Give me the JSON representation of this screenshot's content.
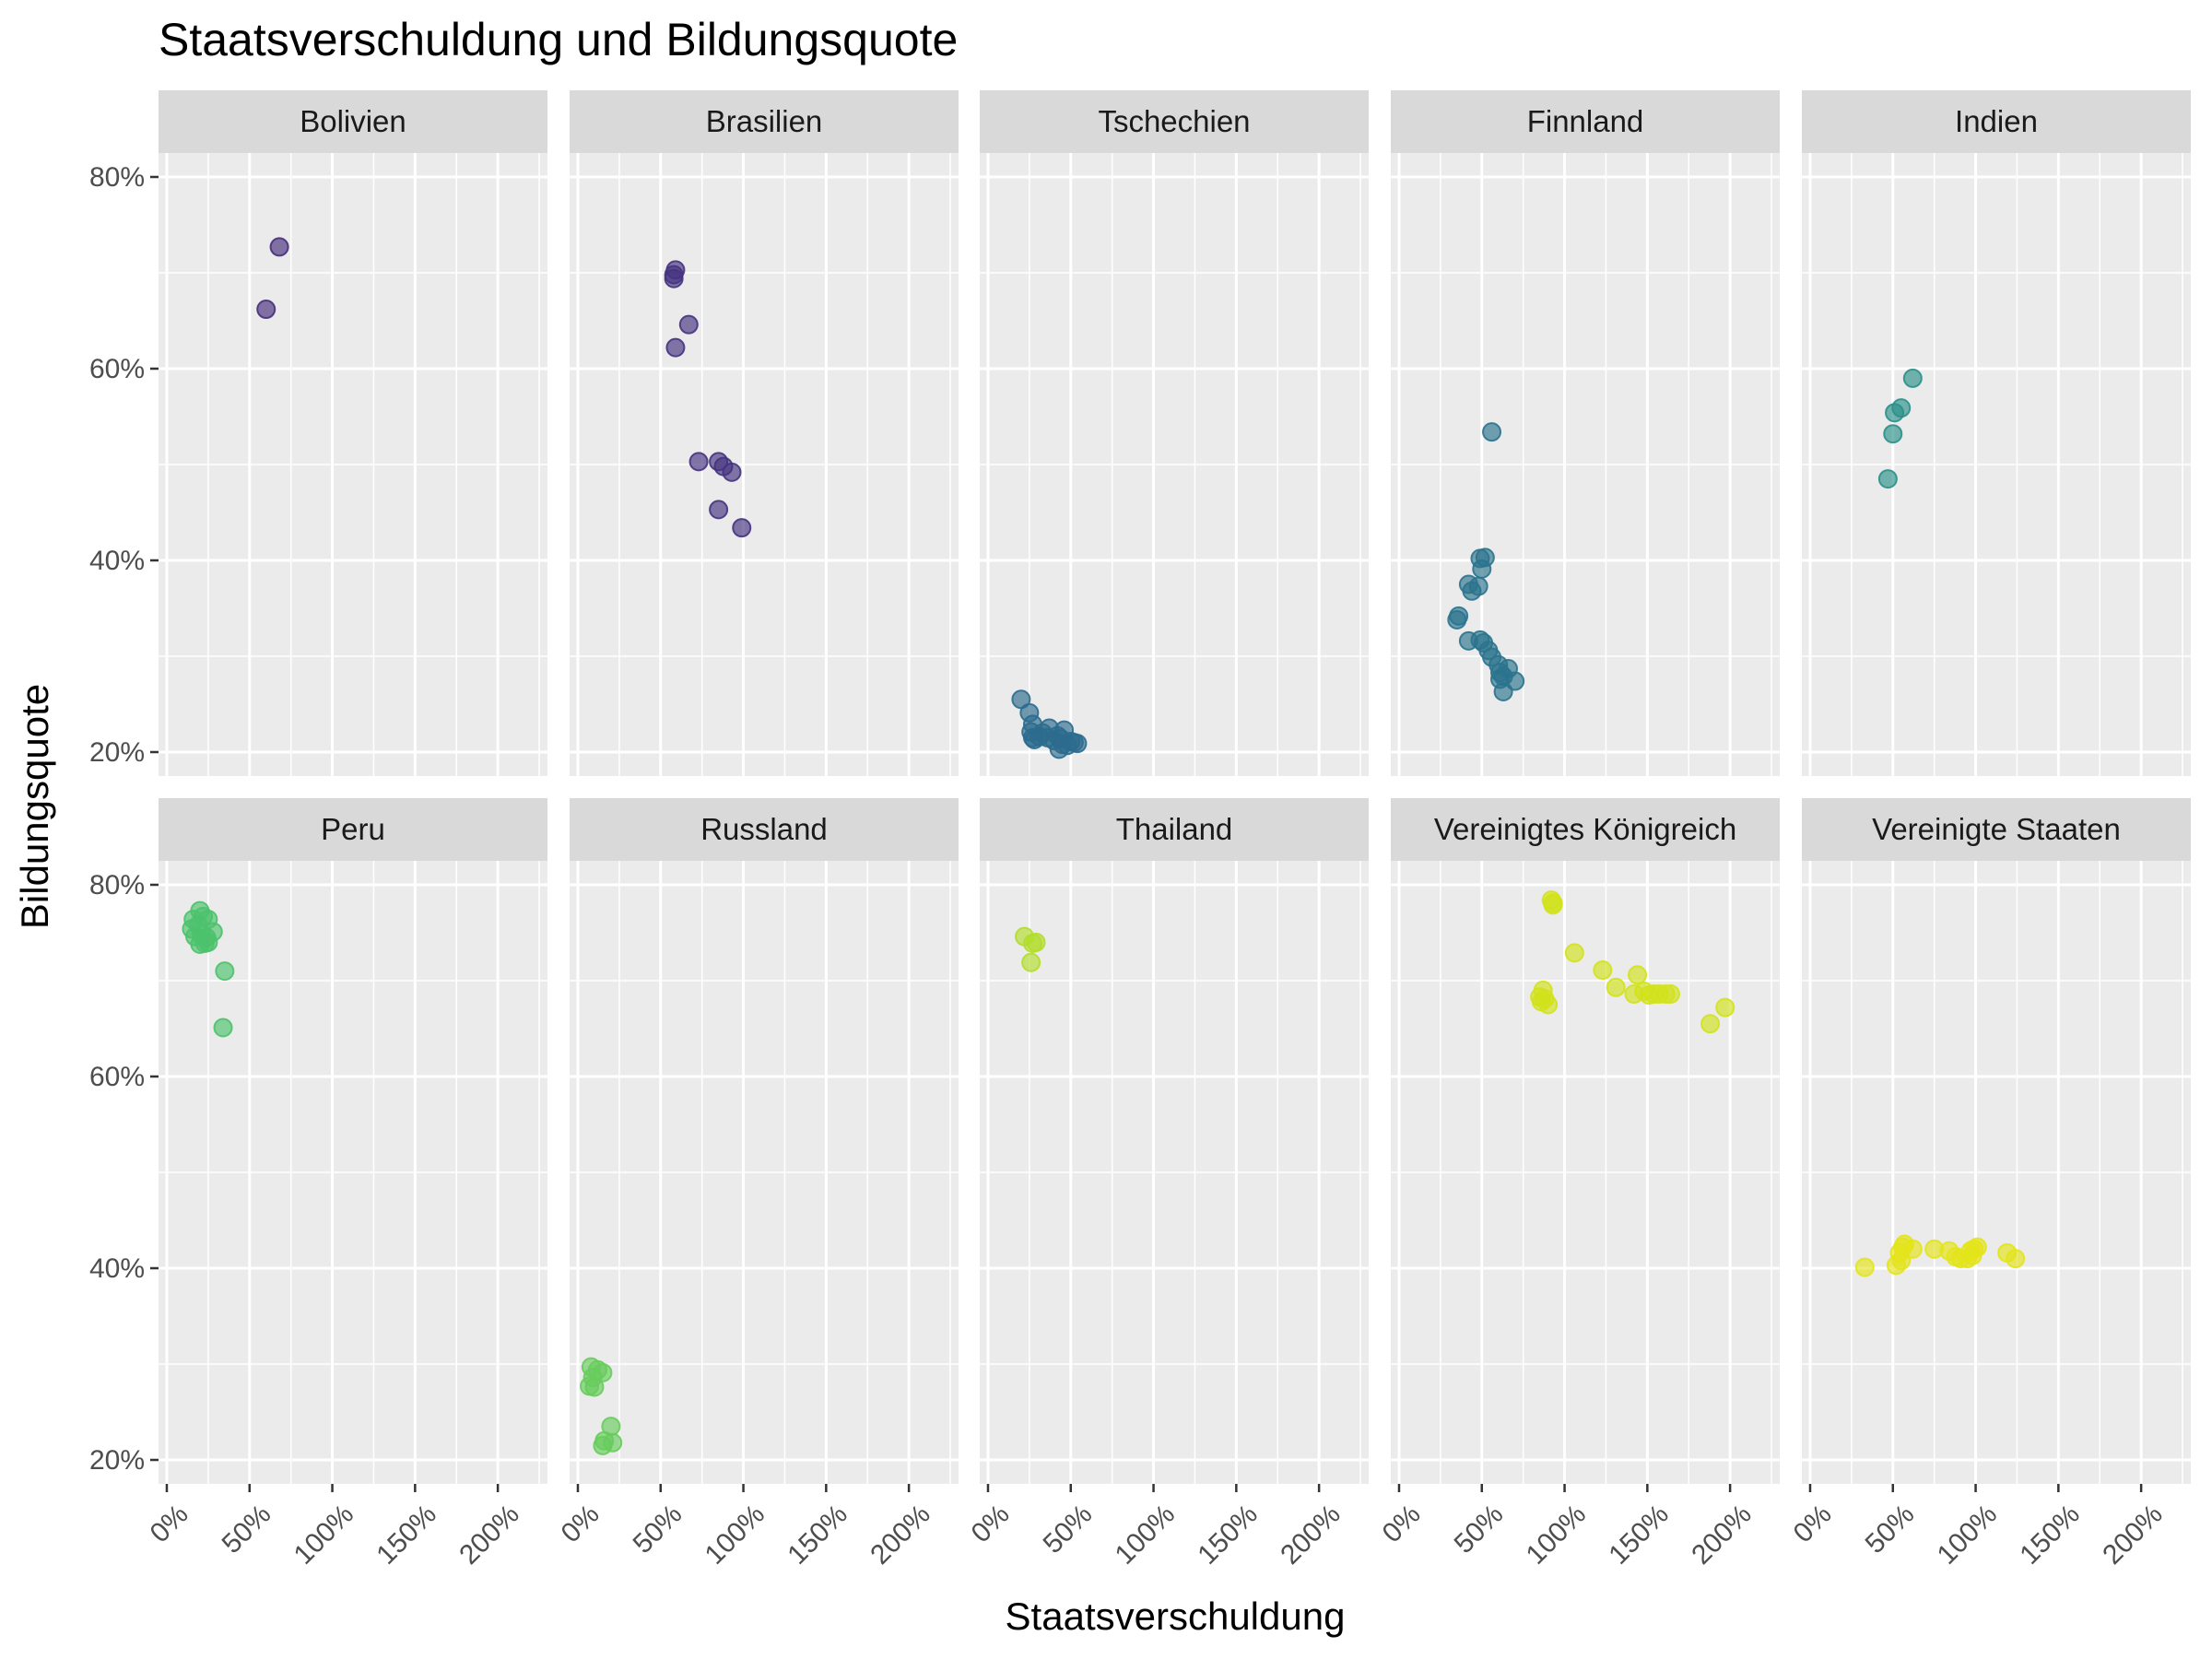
{
  "chart_data": {
    "type": "scatter",
    "title": "Staatsverschuldung und Bildungsquote",
    "xlabel": "Staatsverschuldung",
    "ylabel": "Bildungsquote",
    "xlim": [
      -5,
      230
    ],
    "ylim": [
      17.5,
      82.5
    ],
    "x_ticks": [
      0,
      50,
      100,
      150,
      200
    ],
    "x_tick_labels": [
      "0%",
      "50%",
      "100%",
      "150%",
      "200%"
    ],
    "y_ticks": [
      20,
      40,
      60,
      80
    ],
    "y_tick_labels": [
      "20%",
      "40%",
      "60%",
      "80%"
    ],
    "grid": true,
    "layout": "facet_wrap 2 rows x 5 columns",
    "panels": [
      {
        "name": "Bolivien",
        "color": "#472d7b",
        "points": [
          [
            60,
            66.2
          ],
          [
            68,
            72.7
          ]
        ]
      },
      {
        "name": "Brasilien",
        "color": "#45337f",
        "points": [
          [
            58,
            69.8
          ],
          [
            59,
            70.3
          ],
          [
            58,
            69.4
          ],
          [
            59,
            62.2
          ],
          [
            67,
            64.6
          ],
          [
            73,
            50.3
          ],
          [
            85,
            50.3
          ],
          [
            88,
            49.8
          ],
          [
            93,
            49.2
          ],
          [
            85,
            45.3
          ],
          [
            99,
            43.4
          ]
        ]
      },
      {
        "name": "Tschechien",
        "color": "#2c6c8e",
        "points": [
          [
            20,
            25.5
          ],
          [
            25,
            24.1
          ],
          [
            27,
            22.9
          ],
          [
            26,
            22.1
          ],
          [
            27,
            21.5
          ],
          [
            28,
            21.3
          ],
          [
            31,
            21.6
          ],
          [
            33,
            22
          ],
          [
            37,
            22.5
          ],
          [
            36,
            21.5
          ],
          [
            40,
            21.2
          ],
          [
            42,
            21.7
          ],
          [
            44,
            21.4
          ],
          [
            46,
            22.3
          ],
          [
            43,
            20.3
          ],
          [
            45,
            20.8
          ],
          [
            48,
            20.7
          ],
          [
            50,
            21.1
          ],
          [
            52,
            21
          ],
          [
            54,
            20.9
          ]
        ]
      },
      {
        "name": "Finnland",
        "color": "#2b738e",
        "points": [
          [
            56,
            53.4
          ],
          [
            49,
            40.2
          ],
          [
            52,
            40.3
          ],
          [
            50,
            39.1
          ],
          [
            42,
            37.5
          ],
          [
            48,
            37.3
          ],
          [
            44,
            36.8
          ],
          [
            36,
            34.2
          ],
          [
            35,
            33.8
          ],
          [
            42,
            31.6
          ],
          [
            49,
            31.7
          ],
          [
            51,
            31.4
          ],
          [
            54,
            30.6
          ],
          [
            56,
            29.9
          ],
          [
            60,
            29.1
          ],
          [
            61,
            28.3
          ],
          [
            61,
            27.6
          ],
          [
            63,
            27.9
          ],
          [
            66,
            28.7
          ],
          [
            70,
            27.4
          ],
          [
            63,
            26.3
          ]
        ]
      },
      {
        "name": "Indien",
        "color": "#2b9089",
        "points": [
          [
            47,
            48.5
          ],
          [
            50,
            53.2
          ],
          [
            51,
            55.4
          ],
          [
            55,
            55.9
          ],
          [
            62,
            59
          ]
        ]
      },
      {
        "name": "Peru",
        "color": "#4cc26c",
        "points": [
          [
            20,
            77.3
          ],
          [
            22,
            76.7
          ],
          [
            25,
            76.4
          ],
          [
            16,
            76.4
          ],
          [
            15,
            75.4
          ],
          [
            19,
            75.8
          ],
          [
            21,
            74.8
          ],
          [
            17,
            74.6
          ],
          [
            24,
            74.5
          ],
          [
            28,
            75.1
          ],
          [
            20,
            73.8
          ],
          [
            25,
            74
          ],
          [
            23,
            73.9
          ],
          [
            35,
            71
          ],
          [
            34,
            65.1
          ]
        ]
      },
      {
        "name": "Russland",
        "color": "#67cc5c",
        "points": [
          [
            8,
            29.7
          ],
          [
            12,
            29.4
          ],
          [
            15,
            29.1
          ],
          [
            9,
            28.6
          ],
          [
            7,
            27.7
          ],
          [
            10,
            27.6
          ],
          [
            20,
            23.5
          ],
          [
            16,
            22
          ],
          [
            21,
            21.8
          ],
          [
            15,
            21.5
          ]
        ]
      },
      {
        "name": "Thailand",
        "color": "#b2dd2d",
        "points": [
          [
            22,
            74.6
          ],
          [
            29,
            74
          ],
          [
            27,
            73.9
          ],
          [
            26,
            71.9
          ]
        ]
      },
      {
        "name": "Vereinigtes Königreich",
        "color": "#d1e21b",
        "points": [
          [
            92,
            78.4
          ],
          [
            93,
            78.1
          ],
          [
            93,
            77.9
          ],
          [
            106,
            72.9
          ],
          [
            123,
            71.1
          ],
          [
            144,
            70.6
          ],
          [
            131,
            69.3
          ],
          [
            142,
            68.6
          ],
          [
            148,
            68.9
          ],
          [
            151,
            68.5
          ],
          [
            154,
            68.6
          ],
          [
            157,
            68.6
          ],
          [
            161,
            68.6
          ],
          [
            164,
            68.6
          ],
          [
            87,
            69
          ],
          [
            85,
            68.3
          ],
          [
            88,
            68.1
          ],
          [
            86,
            67.8
          ],
          [
            90,
            67.5
          ],
          [
            188,
            65.5
          ],
          [
            197,
            67.2
          ]
        ]
      },
      {
        "name": "Vereinigte Staaten",
        "color": "#e3e418",
        "points": [
          [
            33,
            40.1
          ],
          [
            52,
            40.3
          ],
          [
            55,
            40.8
          ],
          [
            54,
            41.6
          ],
          [
            56,
            42.2
          ],
          [
            57,
            42.5
          ],
          [
            62,
            42
          ],
          [
            75,
            42
          ],
          [
            84,
            41.8
          ],
          [
            88,
            41.2
          ],
          [
            91,
            41
          ],
          [
            95,
            41
          ],
          [
            98,
            41.3
          ],
          [
            97,
            41.8
          ],
          [
            99,
            42
          ],
          [
            101,
            42.2
          ],
          [
            119,
            41.6
          ],
          [
            124,
            41
          ]
        ]
      }
    ]
  }
}
